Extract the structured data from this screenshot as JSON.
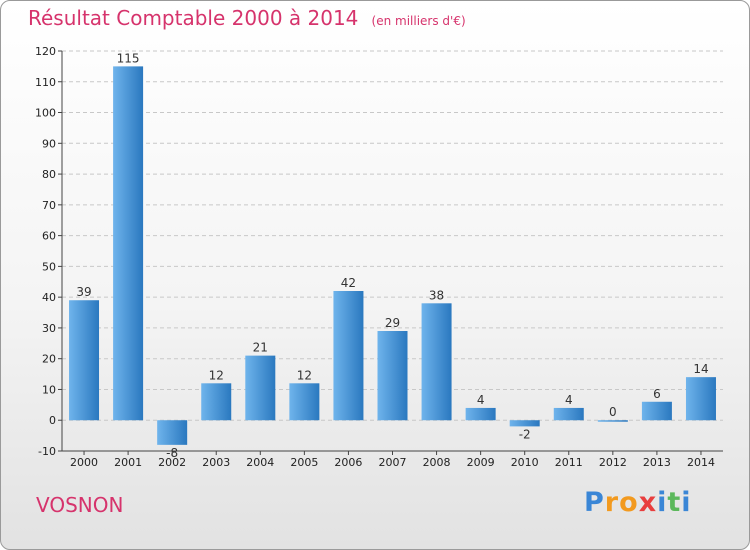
{
  "title": "Résultat Comptable 2000 à 2014",
  "subtitle": "(en milliers d'€)",
  "town": "VOSNON",
  "logo": {
    "text": "Proxiti",
    "letters": [
      "P",
      "r",
      "o",
      "x",
      "i",
      "t",
      "i"
    ],
    "colors": [
      "#3a86d6",
      "#f29a1f",
      "#f29a1f",
      "#e83e3e",
      "#3a86d6",
      "#5cb85c",
      "#3a86d6"
    ]
  },
  "colors": {
    "bar_light": "#6fb4ec",
    "bar_dark": "#2a78bf",
    "title": "#d6336c"
  },
  "chart_data": {
    "type": "bar",
    "categories": [
      "2000",
      "2001",
      "2002",
      "2003",
      "2004",
      "2005",
      "2006",
      "2007",
      "2008",
      "2009",
      "2010",
      "2011",
      "2012",
      "2013",
      "2014"
    ],
    "values": [
      39,
      115,
      -8,
      12,
      21,
      12,
      42,
      29,
      38,
      4,
      -2,
      4,
      0,
      6,
      14
    ],
    "ylim": [
      -10,
      120
    ],
    "yticks": [
      -10,
      0,
      10,
      20,
      30,
      40,
      50,
      60,
      70,
      80,
      90,
      100,
      110,
      120
    ],
    "grid": true
  }
}
